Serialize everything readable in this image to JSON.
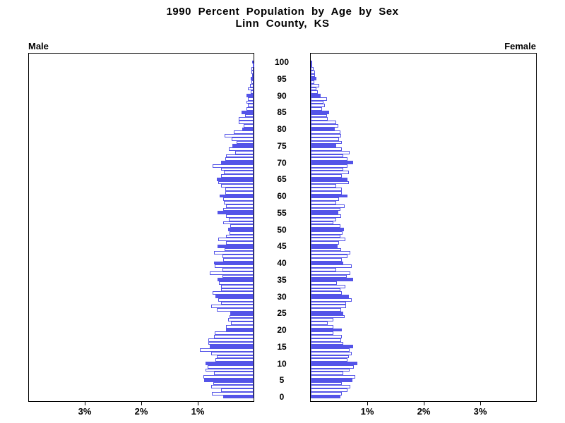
{
  "title": {
    "line1": "1990 Percent Population by Age by Sex",
    "line2": "Linn County, KS"
  },
  "panels": {
    "left_label": "Male",
    "right_label": "Female"
  },
  "axis": {
    "left_ticks": [
      "3%",
      "2%",
      "1%"
    ],
    "right_ticks": [
      "1%",
      "2%",
      "3%"
    ],
    "age_labels": [
      "0",
      "5",
      "10",
      "15",
      "20",
      "25",
      "30",
      "35",
      "40",
      "45",
      "50",
      "55",
      "60",
      "65",
      "70",
      "75",
      "80",
      "85",
      "90",
      "95",
      "100"
    ]
  },
  "colors": {
    "bar_blue": "#5454e8",
    "axis_black": "#000000",
    "background": "#ffffff"
  },
  "chart_data": {
    "type": "bar",
    "variant": "population-pyramid",
    "title": "1990 Percent Population by Age by Sex",
    "subtitle": "Linn County, KS",
    "unit": "percent of total population",
    "ages": {
      "min": 0,
      "max": 100,
      "step": 1,
      "label_interval": 5
    },
    "x_axis": {
      "ticks_percent": [
        1,
        2,
        3
      ],
      "range_percent_each_side": [
        0,
        4
      ]
    },
    "style_note": "every 5th age bar solid blue fill, other bars white with blue outline",
    "legend_position": "none",
    "grid": false,
    "series": [
      {
        "name": "Male",
        "side": "left",
        "values": [
          0.54,
          0.74,
          0.58,
          0.75,
          0.71,
          0.88,
          0.89,
          0.7,
          0.85,
          0.81,
          0.85,
          0.68,
          0.65,
          0.75,
          0.95,
          0.78,
          0.8,
          0.8,
          0.7,
          0.69,
          0.49,
          0.49,
          0.4,
          0.45,
          0.43,
          0.41,
          0.65,
          0.75,
          0.58,
          0.62,
          0.67,
          0.72,
          0.58,
          0.58,
          0.61,
          0.64,
          0.55,
          0.78,
          0.55,
          0.69,
          0.7,
          0.54,
          0.55,
          0.7,
          0.51,
          0.64,
          0.49,
          0.63,
          0.49,
          0.42,
          0.45,
          0.41,
          0.54,
          0.44,
          0.49,
          0.64,
          0.54,
          0.49,
          0.52,
          0.54,
          0.6,
          0.5,
          0.5,
          0.57,
          0.63,
          0.65,
          0.57,
          0.52,
          0.57,
          0.73,
          0.57,
          0.5,
          0.49,
          0.33,
          0.44,
          0.38,
          0.3,
          0.39,
          0.51,
          0.35,
          0.2,
          0.18,
          0.26,
          0.26,
          0.15,
          0.21,
          0.12,
          0.1,
          0.13,
          0.1,
          0.12,
          0.05,
          0.1,
          0.06,
          0.04,
          0.05,
          0.03,
          0.04,
          0.04,
          0.01,
          0.03
        ]
      },
      {
        "name": "Female",
        "side": "right",
        "values": [
          0.52,
          0.55,
          0.65,
          0.7,
          0.55,
          0.74,
          0.79,
          0.58,
          0.69,
          0.76,
          0.83,
          0.65,
          0.68,
          0.72,
          0.69,
          0.75,
          0.58,
          0.54,
          0.55,
          0.4,
          0.55,
          0.4,
          0.3,
          0.4,
          0.6,
          0.57,
          0.54,
          0.62,
          0.62,
          0.72,
          0.67,
          0.55,
          0.52,
          0.61,
          0.46,
          0.75,
          0.64,
          0.7,
          0.45,
          0.72,
          0.58,
          0.55,
          0.65,
          0.7,
          0.54,
          0.48,
          0.5,
          0.61,
          0.52,
          0.56,
          0.59,
          0.52,
          0.4,
          0.45,
          0.54,
          0.49,
          0.52,
          0.6,
          0.45,
          0.5,
          0.65,
          0.55,
          0.55,
          0.45,
          0.68,
          0.65,
          0.55,
          0.68,
          0.57,
          0.65,
          0.75,
          0.65,
          0.57,
          0.69,
          0.55,
          0.45,
          0.55,
          0.5,
          0.54,
          0.52,
          0.43,
          0.49,
          0.45,
          0.3,
          0.29,
          0.32,
          0.2,
          0.25,
          0.23,
          0.29,
          0.18,
          0.12,
          0.1,
          0.15,
          0.06,
          0.1,
          0.08,
          0.08,
          0.05,
          0.02,
          0.03
        ]
      }
    ]
  }
}
